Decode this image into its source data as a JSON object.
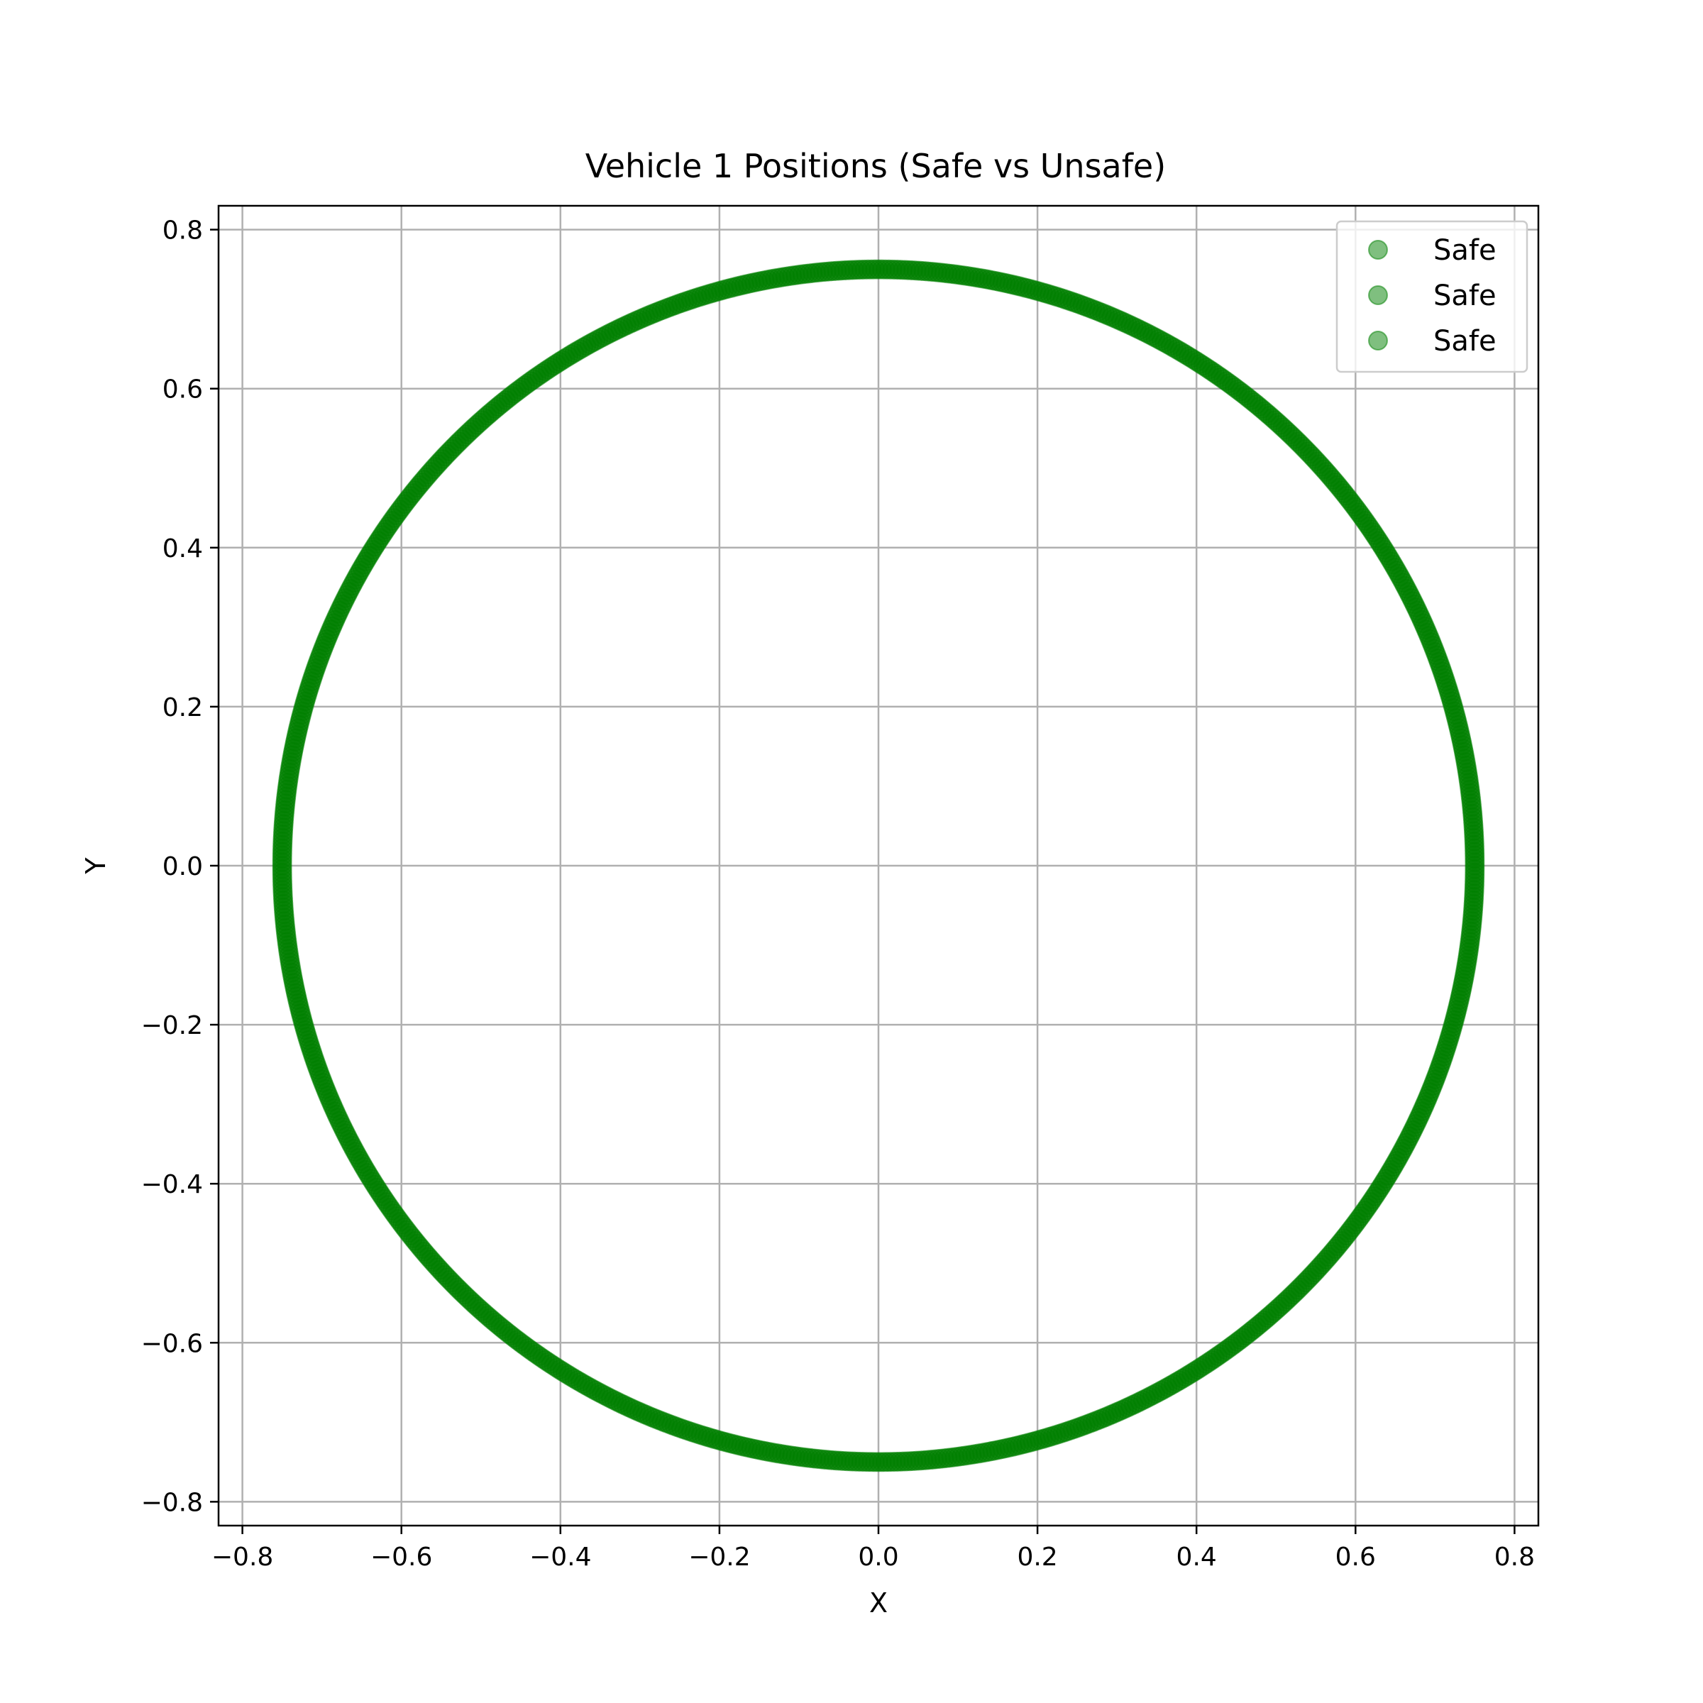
{
  "chart_data": {
    "type": "scatter",
    "title": "Vehicle 1 Positions (Safe vs Unsafe)",
    "xlabel": "X",
    "ylabel": "Y",
    "xlim": [
      -0.83,
      0.83
    ],
    "ylim": [
      -0.83,
      0.83
    ],
    "x_ticks": [
      -0.8,
      -0.6,
      -0.4,
      -0.2,
      0.0,
      0.2,
      0.4,
      0.6,
      0.8
    ],
    "x_tick_labels": [
      "−0.8",
      "−0.6",
      "−0.4",
      "−0.2",
      "0.0",
      "0.2",
      "0.4",
      "0.6",
      "0.8"
    ],
    "y_ticks": [
      0.8,
      0.6,
      0.4,
      0.2,
      0.0,
      -0.2,
      -0.4,
      -0.6,
      -0.8
    ],
    "y_tick_labels": [
      "0.8",
      "0.6",
      "0.4",
      "0.2",
      "0.0",
      "−0.2",
      "−0.4",
      "−0.6",
      "−0.8"
    ],
    "grid": true,
    "legend_position": "top-right",
    "color": "#008000",
    "marker_alpha": 0.5,
    "series": [
      {
        "name": "Safe",
        "radius": 0.75,
        "point_count": 360
      },
      {
        "name": "Safe",
        "radius": 0.75,
        "point_count": 360
      },
      {
        "name": "Safe",
        "radius": 0.75,
        "point_count": 360
      }
    ]
  }
}
